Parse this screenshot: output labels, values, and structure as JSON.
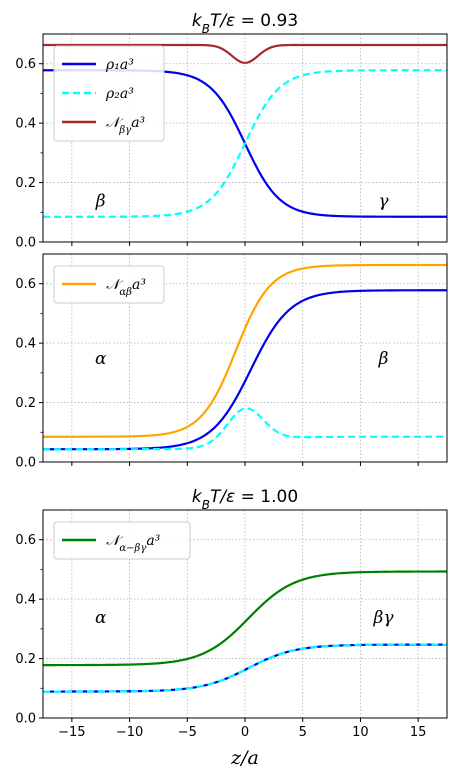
{
  "chart_data": [
    {
      "type": "line",
      "title": "k_BT/ε = 0.93",
      "xlim": [
        -17.5,
        17.5
      ],
      "ylim": [
        0,
        0.7
      ],
      "yticks": [
        0.0,
        0.2,
        0.4,
        0.6
      ],
      "xticks": [
        -15,
        -10,
        -5,
        0,
        5,
        10,
        15
      ],
      "grid": true,
      "legend_position": "upper-left",
      "annotations": [
        {
          "text": "β",
          "x": -12.5,
          "y": 0.14
        },
        {
          "text": "γ",
          "x": 12,
          "y": 0.14
        }
      ],
      "series": [
        {
          "name": "ρ₁a³",
          "color": "#0000ee",
          "style": "solid",
          "legend": true,
          "left": 0.578,
          "right": 0.085,
          "center": 0,
          "width": 1.5
        },
        {
          "name": "ρ₂a³",
          "color": "#00ffff",
          "style": "dashed",
          "legend": true,
          "left": 0.085,
          "right": 0.578,
          "center": 0,
          "width": 1.5
        },
        {
          "name": "𝒩_βγa³",
          "color": "#a52a2a",
          "style": "solid",
          "legend": true,
          "left": 0.663,
          "right": 0.663,
          "dip": 0.06,
          "center": 0,
          "width": 1.5
        }
      ]
    },
    {
      "type": "line",
      "title": "",
      "xlim": [
        -17.5,
        17.5
      ],
      "ylim": [
        0,
        0.7
      ],
      "yticks": [
        0.0,
        0.2,
        0.4,
        0.6
      ],
      "xticks": [
        -15,
        -10,
        -5,
        0,
        5,
        10,
        15
      ],
      "grid": true,
      "legend_position": "upper-left",
      "annotations": [
        {
          "text": "α",
          "x": -12.5,
          "y": 0.35
        },
        {
          "text": "β",
          "x": 12,
          "y": 0.35
        }
      ],
      "series": [
        {
          "name": "𝒩_αβa³",
          "color": "#ffa500",
          "style": "solid",
          "legend": true,
          "left": 0.085,
          "right": 0.663,
          "center": -0.8,
          "width": 1.5
        },
        {
          "name": "ρ₁",
          "color": "#0000ee",
          "style": "solid",
          "legend": false,
          "left": 0.043,
          "right": 0.578,
          "center": 0.5,
          "width": 1.7
        },
        {
          "name": "ρ₂",
          "color": "#00ffff",
          "style": "dashed",
          "legend": false,
          "left": 0.043,
          "right": 0.085,
          "bump": 0.18,
          "center": 0,
          "width": 1.7
        }
      ]
    },
    {
      "type": "line",
      "title": "k_BT/ε = 1.00",
      "xlim": [
        -17.5,
        17.5
      ],
      "ylim": [
        0,
        0.7
      ],
      "yticks": [
        0.0,
        0.2,
        0.4,
        0.6
      ],
      "xticks": [
        -15,
        -10,
        -5,
        0,
        5,
        10,
        15
      ],
      "grid": true,
      "legend_position": "upper-left",
      "xlabel": "z/a",
      "annotations": [
        {
          "text": "α",
          "x": -12.5,
          "y": 0.34
        },
        {
          "text": "βγ",
          "x": 12,
          "y": 0.34
        }
      ],
      "series": [
        {
          "name": "𝒩_α−βγa³",
          "color": "#008000",
          "style": "solid",
          "legend": true,
          "left": 0.178,
          "right": 0.493,
          "center": 0.3,
          "width": 2.0
        },
        {
          "name": "ρ₁",
          "color": "#0000ee",
          "style": "solid",
          "legend": false,
          "left": 0.089,
          "right": 0.247,
          "center": 0.3,
          "width": 2.0
        },
        {
          "name": "ρ₂",
          "color": "#00ffff",
          "style": "dashed",
          "legend": false,
          "left": 0.089,
          "right": 0.247,
          "center": 0.3,
          "width": 2.0
        }
      ]
    }
  ]
}
